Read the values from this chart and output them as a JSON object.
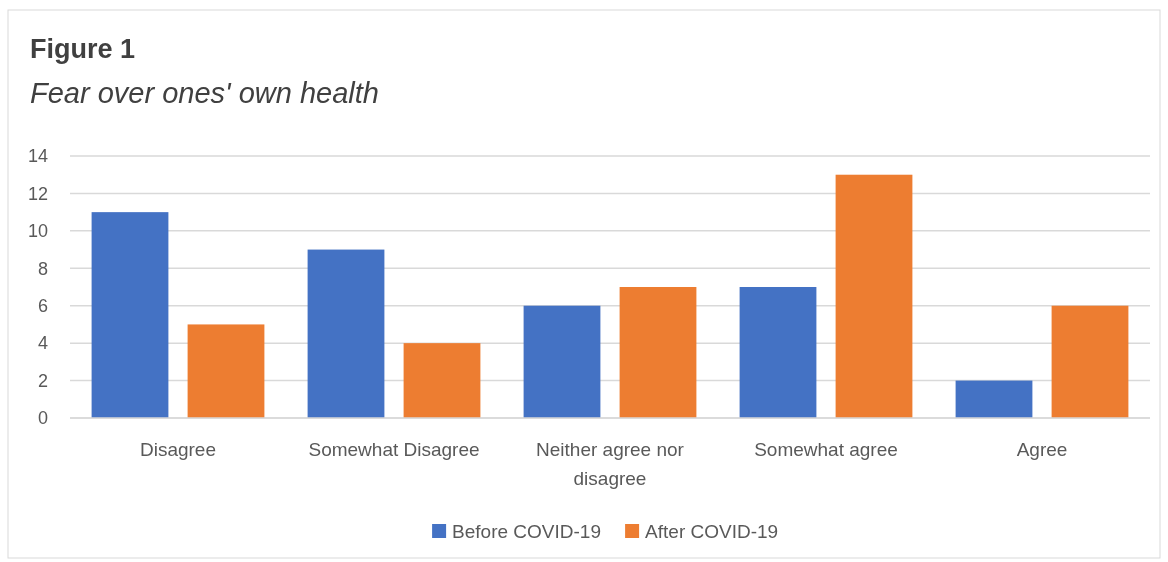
{
  "chart_data": {
    "type": "bar",
    "title": "Figure 1",
    "subtitle": "Fear over ones' own health",
    "categories": [
      "Disagree",
      "Somewhat Disagree",
      "Neither agree nor disagree",
      "Somewhat agree",
      "Agree"
    ],
    "series": [
      {
        "name": "Before COVID-19",
        "color": "#4472c4",
        "values": [
          11,
          9,
          6,
          7,
          2
        ]
      },
      {
        "name": "After COVID-19",
        "color": "#ed7d31",
        "values": [
          5,
          4,
          7,
          13,
          6
        ]
      }
    ],
    "ylim": [
      0,
      14
    ],
    "yticks": [
      0,
      2,
      4,
      6,
      8,
      10,
      12,
      14
    ],
    "grid": "y",
    "legend": "bottom"
  }
}
